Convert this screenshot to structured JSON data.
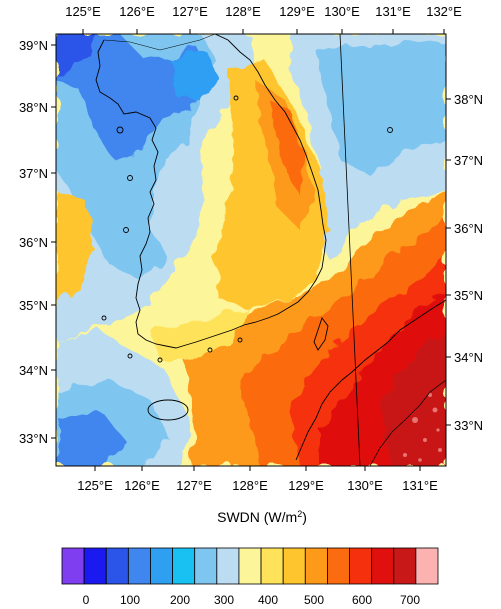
{
  "map": {
    "variable_label": "SWDN (W/m",
    "variable_unit_exp": "2",
    "variable_label_close": ")",
    "top_lon_labels": [
      "125°E",
      "126°E",
      "127°E",
      "128°E",
      "129°E",
      "130°E",
      "131°E",
      "132°E"
    ],
    "bottom_lon_labels": [
      "125°E",
      "126°E",
      "127°E",
      "128°E",
      "129°E",
      "130°E",
      "131°E"
    ],
    "left_lat_labels": [
      "39°N",
      "38°N",
      "37°N",
      "36°N",
      "35°N",
      "34°N",
      "33°N"
    ],
    "right_lat_labels": [
      "38°N",
      "37°N",
      "36°N",
      "35°N",
      "34°N",
      "33°N"
    ]
  },
  "colorbar": {
    "colors": [
      "#7f3ff0",
      "#1a1af0",
      "#2a55e8",
      "#3f86ee",
      "#2f9ff2",
      "#19c0f2",
      "#7ec5f0",
      "#bcdcf2",
      "#fdf59a",
      "#fee25a",
      "#fec52f",
      "#fd9a1a",
      "#fb6b10",
      "#f5300c",
      "#e0100e",
      "#c81818",
      "#fdb2b2"
    ],
    "tick_labels": [
      "0",
      "100",
      "200",
      "300",
      "400",
      "500",
      "600",
      "700"
    ]
  }
}
